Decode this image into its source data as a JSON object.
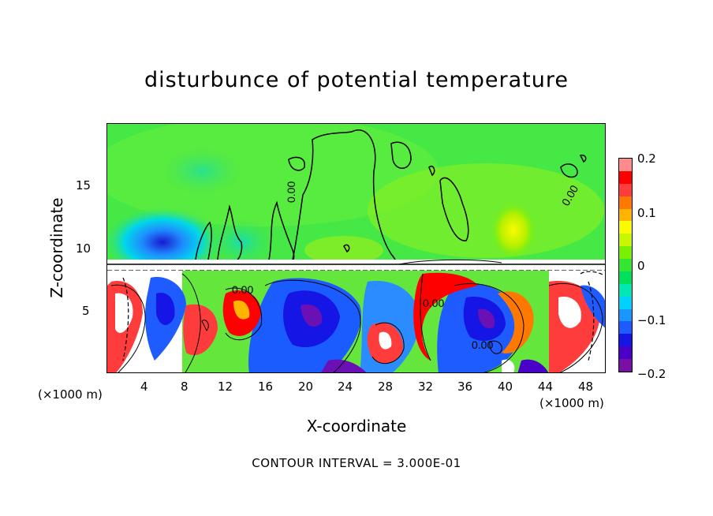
{
  "chart_data": {
    "type": "heatmap",
    "title": "disturbunce of potential temperature",
    "xlabel": "X-coordinate",
    "ylabel": "Z-coordinate",
    "x_unit_left": "(×1000 m)",
    "x_unit_right": "(×1000 m)",
    "x_ticks": [
      "4",
      "8",
      "12",
      "16",
      "20",
      "24",
      "28",
      "32",
      "36",
      "40",
      "44",
      "48"
    ],
    "y_ticks": [
      "5",
      "10",
      "15"
    ],
    "xlim": [
      0,
      50
    ],
    "ylim": [
      0,
      20
    ],
    "colorbar_ticks": [
      "0.2",
      "0.1",
      "0",
      "−0.1",
      "−0.2"
    ],
    "colorbar_range": [
      -0.2,
      0.2
    ],
    "colorbar_colors": [
      "#7a0fa8",
      "#4b00c8",
      "#1515e6",
      "#1f5cff",
      "#1a96ff",
      "#00d2ff",
      "#00e8b4",
      "#00e05a",
      "#32e632",
      "#78f000",
      "#c8f500",
      "#fafa00",
      "#ffb400",
      "#ff7800",
      "#ff3c3c",
      "#ff0000",
      "#ff8c8c"
    ],
    "contour_interval_text": "CONTOUR INTERVAL = 3.000E-01",
    "contour_labels": [
      "0.00",
      "0.00",
      "0.00",
      "0.00",
      "0.00"
    ]
  }
}
